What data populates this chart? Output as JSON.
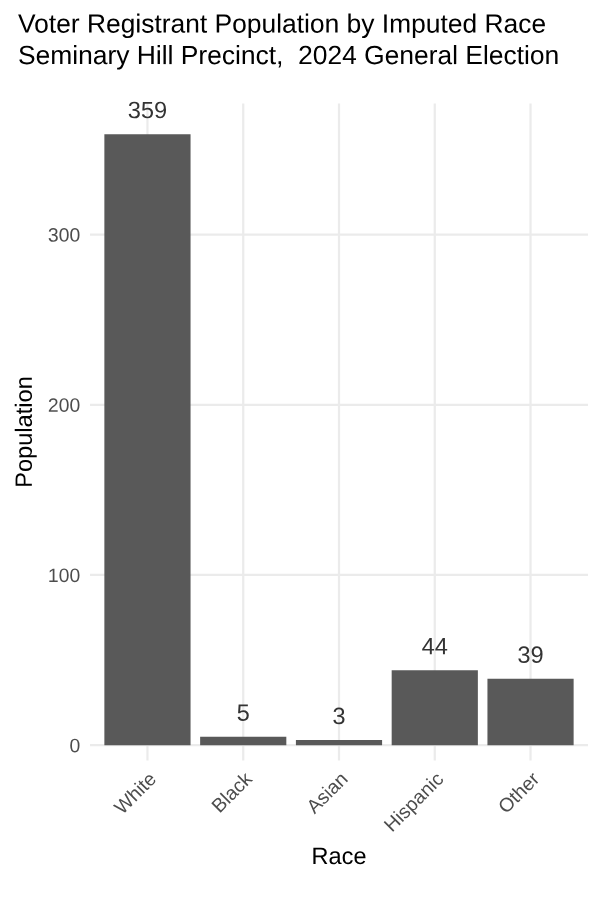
{
  "chart_data": {
    "type": "bar",
    "title": "Voter Registrant Population by Imputed Race",
    "subtitle": "Seminary Hill Precinct,  2024 General Election",
    "xlabel": "Race",
    "ylabel": "Population",
    "categories": [
      "White",
      "Black",
      "Asian",
      "Hispanic",
      "Other"
    ],
    "values": [
      359,
      5,
      3,
      44,
      39
    ],
    "color": "#595959",
    "ylim": [
      -9,
      377
    ],
    "yticks": [
      0,
      100,
      200,
      300
    ],
    "grid": true,
    "data_labels": true
  }
}
